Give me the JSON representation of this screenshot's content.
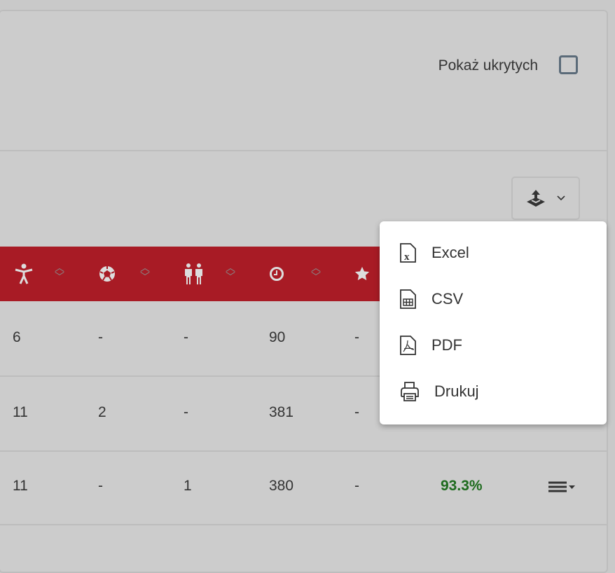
{
  "filters": {
    "show_hidden_label": "Pokaż ukrytych",
    "show_hidden_checked": false
  },
  "export_button": {
    "icon": "export-icon",
    "chevron": "chevron-down-icon"
  },
  "table": {
    "header_color": "#a81b25",
    "columns": [
      {
        "icon": "person-icon"
      },
      {
        "icon": "soccer-ball-icon"
      },
      {
        "icon": "people-icon"
      },
      {
        "icon": "clock-icon"
      },
      {
        "icon": "star-icon"
      }
    ],
    "rows": [
      {
        "c": [
          "6",
          "-",
          "-",
          "90",
          "-"
        ],
        "pct": ""
      },
      {
        "c": [
          "11",
          "2",
          "-",
          "381",
          "-"
        ],
        "pct": ""
      },
      {
        "c": [
          "11",
          "-",
          "1",
          "380",
          "-"
        ],
        "pct": "93.3%"
      }
    ]
  },
  "export_menu": {
    "items": [
      {
        "label": "Excel",
        "icon": "excel-file-icon"
      },
      {
        "label": "CSV",
        "icon": "csv-file-icon"
      },
      {
        "label": "PDF",
        "icon": "pdf-file-icon"
      },
      {
        "label": "Drukuj",
        "icon": "printer-icon"
      }
    ]
  }
}
